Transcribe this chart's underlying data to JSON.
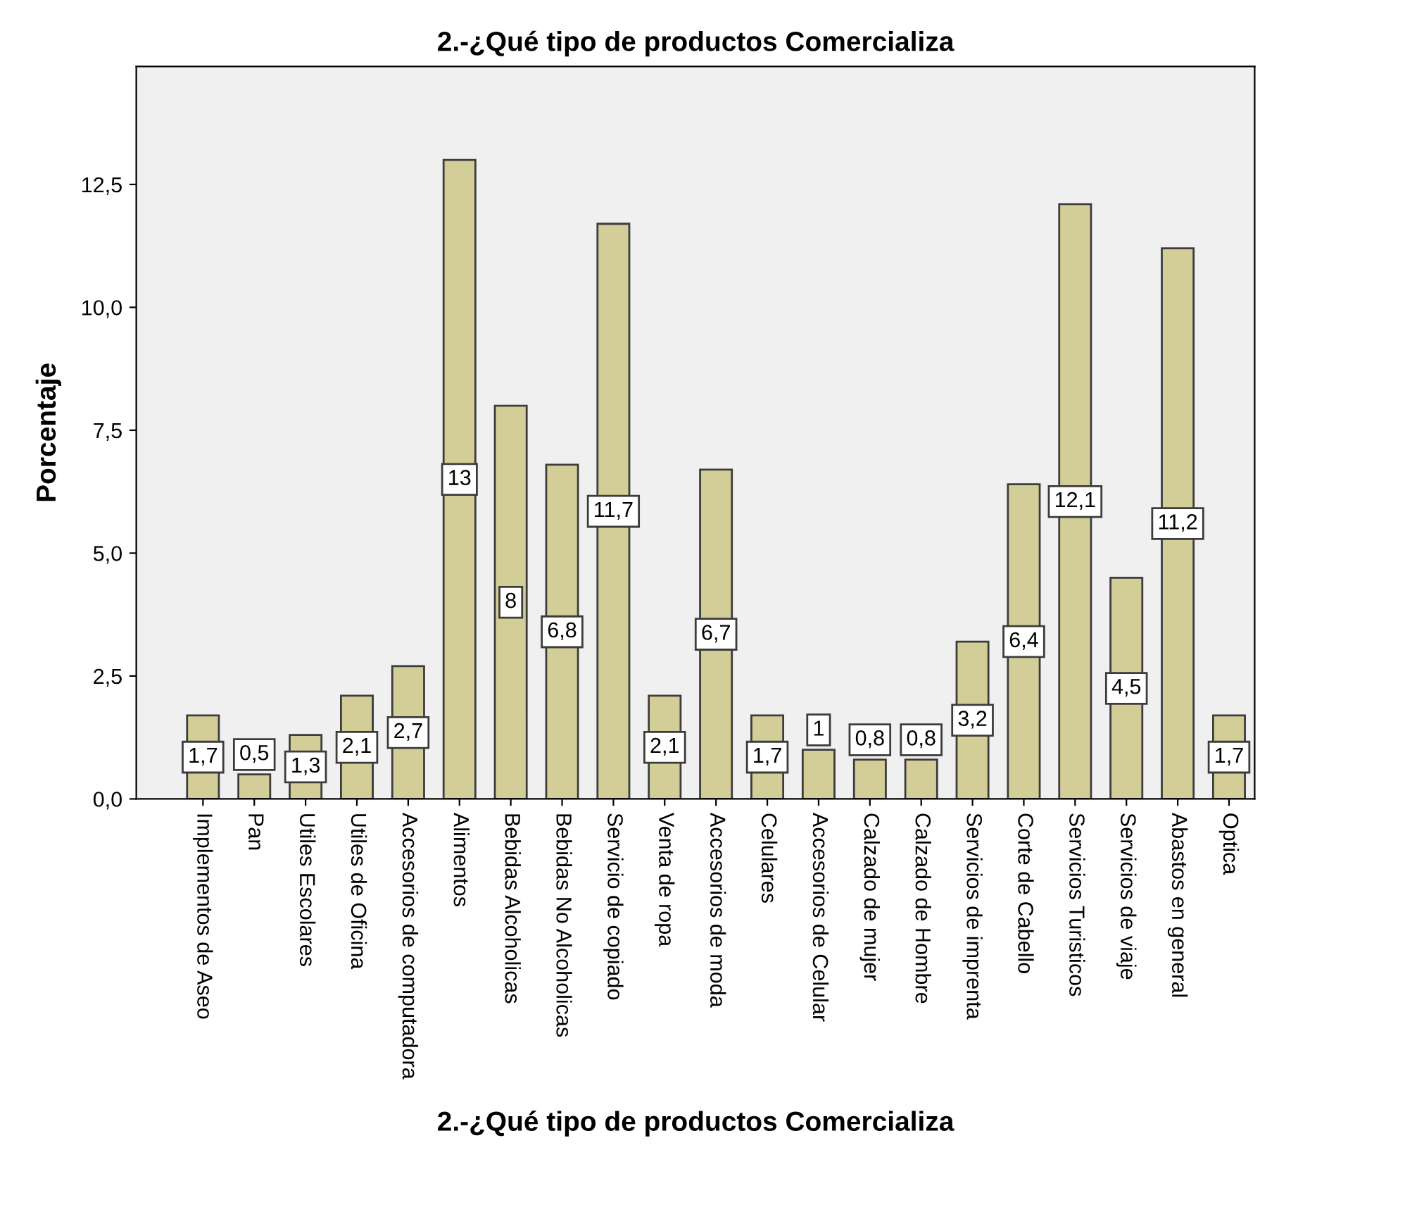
{
  "chart_data": {
    "type": "bar",
    "title": "2.-¿Qué tipo de productos Comercializa",
    "xlabel": "2.-¿Qué tipo de productos Comercializa",
    "ylabel": "Porcentaje",
    "categories": [
      "Implementos de Aseo",
      "Pan",
      "Utiles Escolares",
      "Utiles de Oficina",
      "Accesorios de computadora",
      "Alimentos",
      "Bebidas Alcoholicas",
      "Bebidas No Alcoholicas",
      "Servicio de copiado",
      "Venta de ropa",
      "Accesorios de moda",
      "Celulares",
      "Accesorios de Celular",
      "Calzado de mujer",
      "Calzado de Hombre",
      "Servicios de imprenta",
      "Corte de Cabello",
      "Servicios Turisticos",
      "Servicios de viaje",
      "Abastos en general",
      "Optica"
    ],
    "values": [
      1.7,
      0.5,
      1.3,
      2.1,
      2.7,
      13,
      8,
      6.8,
      11.7,
      2.1,
      6.7,
      1.7,
      1,
      0.8,
      0.8,
      3.2,
      6.4,
      12.1,
      4.5,
      11.2,
      1.7
    ],
    "value_labels": [
      "1,7",
      "0,5",
      "1,3",
      "2,1",
      "2,7",
      "13",
      "8",
      "6,8",
      "11,7",
      "2,1",
      "6,7",
      "1,7",
      "1",
      "0,8",
      "0,8",
      "3,2",
      "6,4",
      "12,1",
      "4,5",
      "11,2",
      "1,7"
    ],
    "color": "#d3ce97",
    "ylim": [
      0,
      14.9
    ],
    "yticks": [
      {
        "value": 0,
        "label": "0,0"
      },
      {
        "value": 2.5,
        "label": "2,5"
      },
      {
        "value": 5,
        "label": "5,0"
      },
      {
        "value": 7.5,
        "label": "7,5"
      },
      {
        "value": 10,
        "label": "10,0"
      },
      {
        "value": 12.5,
        "label": "12,5"
      }
    ],
    "grid": false
  }
}
